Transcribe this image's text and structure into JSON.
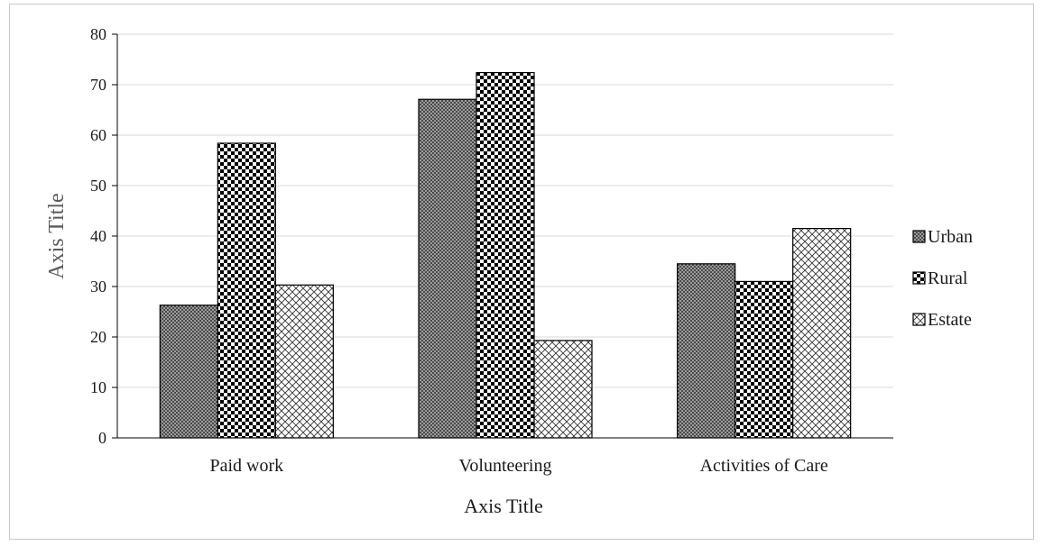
{
  "chart_data": {
    "type": "bar",
    "categories": [
      "Paid work",
      "Volunteering",
      "Activities of Care"
    ],
    "series": [
      {
        "name": "Urban",
        "values": [
          26.3,
          67.1,
          34.5
        ]
      },
      {
        "name": "Rural",
        "values": [
          58.4,
          72.4,
          31.0
        ]
      },
      {
        "name": "Estate",
        "values": [
          30.3,
          19.3,
          41.5
        ]
      }
    ],
    "xlabel": "Axis Title",
    "ylabel": "Axis Title",
    "ylim": [
      0,
      80
    ],
    "yticks": [
      0,
      10,
      20,
      30,
      40,
      50,
      60,
      70,
      80
    ],
    "grid": true,
    "legend_position": "right"
  }
}
